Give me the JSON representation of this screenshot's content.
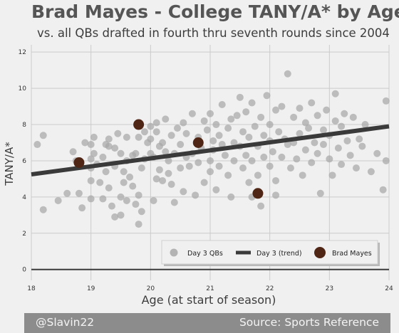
{
  "header": {
    "title": "Brad Mayes - College TANY/A* by Age",
    "subtitle": "vs. all QBs drafted in fourth thru seventh rounds since 2004"
  },
  "footer": {
    "handle": "@Slavin22",
    "source": "Source: Sports Reference"
  },
  "colors": {
    "background": "#f0f0f0",
    "scatter": "#a8a8a8",
    "trend": "#3a3a3a",
    "highlight": "#4f2615",
    "footer_bg": "#8c8c8c"
  },
  "chart_data": {
    "type": "scatter",
    "title": "Brad Mayes - College TANY/A* by Age",
    "xlabel": "Age (at start of season)",
    "ylabel": "TANY/A*",
    "xlim": [
      18,
      24
    ],
    "ylim": [
      -0.6,
      12.4
    ],
    "x_ticks": [
      "18",
      "19",
      "20",
      "21",
      "22",
      "23",
      "24"
    ],
    "y_ticks": [
      "0",
      "2",
      "4",
      "6",
      "8",
      "10",
      "12"
    ],
    "grid": true,
    "legend_position": "bottom-right",
    "legend": [
      {
        "label": "Day 3 QBs",
        "kind": "marker-grey"
      },
      {
        "label": "Day 3 (trend)",
        "kind": "line"
      },
      {
        "label": "Brad Mayes",
        "kind": "marker-highlight"
      }
    ],
    "trend": {
      "name": "Day 3 (trend)",
      "x": [
        18,
        24
      ],
      "y": [
        5.25,
        7.9
      ]
    },
    "highlight": {
      "name": "Brad Mayes",
      "points": [
        [
          18.8,
          5.9
        ],
        [
          19.8,
          8.0
        ],
        [
          20.8,
          7.0
        ],
        [
          21.8,
          4.2
        ]
      ]
    },
    "series": [
      {
        "name": "Day 3 QBs",
        "points": [
          [
            18.1,
            6.9
          ],
          [
            18.2,
            7.4
          ],
          [
            18.2,
            3.3
          ],
          [
            18.45,
            3.8
          ],
          [
            18.6,
            4.2
          ],
          [
            18.7,
            6.5
          ],
          [
            18.75,
            6.0
          ],
          [
            18.8,
            4.2
          ],
          [
            18.85,
            3.4
          ],
          [
            18.9,
            7.0
          ],
          [
            19.0,
            6.9
          ],
          [
            19.0,
            6.1
          ],
          [
            19.0,
            4.9
          ],
          [
            19.0,
            3.9
          ],
          [
            19.0,
            5.6
          ],
          [
            19.05,
            7.3
          ],
          [
            19.05,
            6.4
          ],
          [
            19.1,
            5.8
          ],
          [
            19.15,
            4.8
          ],
          [
            19.2,
            3.9
          ],
          [
            19.2,
            6.2
          ],
          [
            19.25,
            6.9
          ],
          [
            19.25,
            5.4
          ],
          [
            19.3,
            7.2
          ],
          [
            19.3,
            4.5
          ],
          [
            19.3,
            6.8
          ],
          [
            19.35,
            3.5
          ],
          [
            19.4,
            2.9
          ],
          [
            19.4,
            5.7
          ],
          [
            19.4,
            6.7
          ],
          [
            19.45,
            7.5
          ],
          [
            19.5,
            4.0
          ],
          [
            19.5,
            6.4
          ],
          [
            19.55,
            5.4
          ],
          [
            19.55,
            4.8
          ],
          [
            19.6,
            7.3
          ],
          [
            19.6,
            6.0
          ],
          [
            19.6,
            3.8
          ],
          [
            19.65,
            5.1
          ],
          [
            19.7,
            4.6
          ],
          [
            19.7,
            6.3
          ],
          [
            19.75,
            3.6
          ],
          [
            19.75,
            6.4
          ],
          [
            19.8,
            2.5
          ],
          [
            19.8,
            7.3
          ],
          [
            19.8,
            4.1
          ],
          [
            19.85,
            5.6
          ],
          [
            19.85,
            3.2
          ],
          [
            19.9,
            7.6
          ],
          [
            19.9,
            6.1
          ],
          [
            19.95,
            7.0
          ],
          [
            20.0,
            6.4
          ],
          [
            20.0,
            7.9
          ],
          [
            20.0,
            7.2
          ],
          [
            20.05,
            6.2
          ],
          [
            20.05,
            3.8
          ],
          [
            20.1,
            5.0
          ],
          [
            20.1,
            8.1
          ],
          [
            20.1,
            7.6
          ],
          [
            20.15,
            6.8
          ],
          [
            20.15,
            5.5
          ],
          [
            20.2,
            7.0
          ],
          [
            20.2,
            4.9
          ],
          [
            20.25,
            6.5
          ],
          [
            20.25,
            8.3
          ],
          [
            20.3,
            5.3
          ],
          [
            20.3,
            6.0
          ],
          [
            20.35,
            7.4
          ],
          [
            20.35,
            4.7
          ],
          [
            20.4,
            6.4
          ],
          [
            20.4,
            3.7
          ],
          [
            20.45,
            7.8
          ],
          [
            20.5,
            6.9
          ],
          [
            20.5,
            5.6
          ],
          [
            20.55,
            8.1
          ],
          [
            20.55,
            4.3
          ],
          [
            20.6,
            6.2
          ],
          [
            20.6,
            7.5
          ],
          [
            20.65,
            5.7
          ],
          [
            20.7,
            6.4
          ],
          [
            20.7,
            8.6
          ],
          [
            20.75,
            4.1
          ],
          [
            20.8,
            7.3
          ],
          [
            20.8,
            5.9
          ],
          [
            20.85,
            6.7
          ],
          [
            20.9,
            8.2
          ],
          [
            20.9,
            4.8
          ],
          [
            20.95,
            7.7
          ],
          [
            21.0,
            6.0
          ],
          [
            21.0,
            8.6
          ],
          [
            21.0,
            5.4
          ],
          [
            21.05,
            7.1
          ],
          [
            21.05,
            6.6
          ],
          [
            21.1,
            8.0
          ],
          [
            21.1,
            4.4
          ],
          [
            21.15,
            7.4
          ],
          [
            21.15,
            5.7
          ],
          [
            21.2,
            6.9
          ],
          [
            21.2,
            9.1
          ],
          [
            21.25,
            6.3
          ],
          [
            21.3,
            7.8
          ],
          [
            21.3,
            5.2
          ],
          [
            21.35,
            8.3
          ],
          [
            21.35,
            4.0
          ],
          [
            21.4,
            7.0
          ],
          [
            21.4,
            6.0
          ],
          [
            21.45,
            8.5
          ],
          [
            21.5,
            6.8
          ],
          [
            21.5,
            9.5
          ],
          [
            21.55,
            5.6
          ],
          [
            21.55,
            7.6
          ],
          [
            21.6,
            6.3
          ],
          [
            21.6,
            8.7
          ],
          [
            21.65,
            4.8
          ],
          [
            21.65,
            7.3
          ],
          [
            21.7,
            6.0
          ],
          [
            21.7,
            9.2
          ],
          [
            21.75,
            7.9
          ],
          [
            21.8,
            5.2
          ],
          [
            21.8,
            6.8
          ],
          [
            21.85,
            8.4
          ],
          [
            21.85,
            3.5
          ],
          [
            21.9,
            7.4
          ],
          [
            21.9,
            6.2
          ],
          [
            21.95,
            9.6
          ],
          [
            22.0,
            8.0
          ],
          [
            22.0,
            5.7
          ],
          [
            22.0,
            7.1
          ],
          [
            22.05,
            6.5
          ],
          [
            22.1,
            8.8
          ],
          [
            22.1,
            4.9
          ],
          [
            22.15,
            7.6
          ],
          [
            22.2,
            6.2
          ],
          [
            22.2,
            9.0
          ],
          [
            22.25,
            7.2
          ],
          [
            22.3,
            10.8
          ],
          [
            22.3,
            6.9
          ],
          [
            22.35,
            5.6
          ],
          [
            22.4,
            8.4
          ],
          [
            22.4,
            7.0
          ],
          [
            22.45,
            6.1
          ],
          [
            22.5,
            8.9
          ],
          [
            22.5,
            7.5
          ],
          [
            22.55,
            5.2
          ],
          [
            22.6,
            8.1
          ],
          [
            22.6,
            6.6
          ],
          [
            22.65,
            7.8
          ],
          [
            22.7,
            9.2
          ],
          [
            22.7,
            5.9
          ],
          [
            22.75,
            7.0
          ],
          [
            22.8,
            8.5
          ],
          [
            22.8,
            6.4
          ],
          [
            22.85,
            4.2
          ],
          [
            22.9,
            7.7
          ],
          [
            22.9,
            6.9
          ],
          [
            22.95,
            8.8
          ],
          [
            23.0,
            6.1
          ],
          [
            23.0,
            7.4
          ],
          [
            23.05,
            5.2
          ],
          [
            23.1,
            9.7
          ],
          [
            23.1,
            8.2
          ],
          [
            23.15,
            6.7
          ],
          [
            23.2,
            7.9
          ],
          [
            23.2,
            5.8
          ],
          [
            23.25,
            8.6
          ],
          [
            23.3,
            7.1
          ],
          [
            23.35,
            6.3
          ],
          [
            23.4,
            8.4
          ],
          [
            23.45,
            5.6
          ],
          [
            23.5,
            7.2
          ],
          [
            23.55,
            6.8
          ],
          [
            23.6,
            8.0
          ],
          [
            23.7,
            5.4
          ],
          [
            23.8,
            6.4
          ],
          [
            23.9,
            4.4
          ],
          [
            23.95,
            9.3
          ],
          [
            23.95,
            6.0
          ],
          [
            19.5,
            3.0
          ],
          [
            22.1,
            4.1
          ],
          [
            21.7,
            4.0
          ]
        ]
      }
    ]
  }
}
